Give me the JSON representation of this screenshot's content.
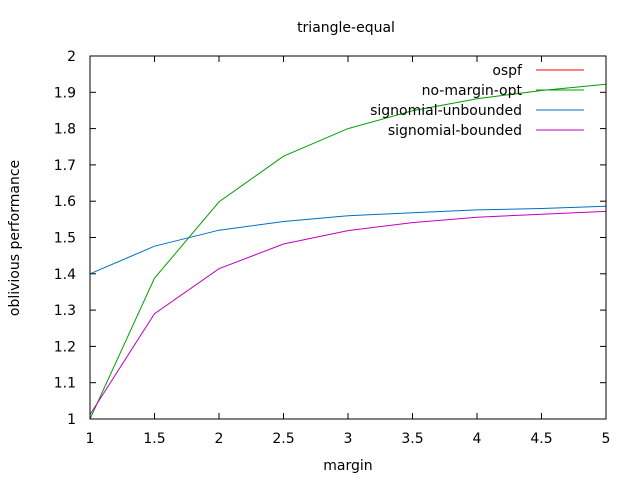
{
  "chart_data": {
    "type": "line",
    "title": "triangle-equal",
    "xlabel": "margin",
    "ylabel": "oblivious performance",
    "xlim": [
      1,
      5
    ],
    "ylim": [
      1,
      2
    ],
    "xticks": [
      1,
      1.5,
      2,
      2.5,
      3,
      3.5,
      4,
      4.5,
      5
    ],
    "yticks": [
      1,
      1.1,
      1.2,
      1.3,
      1.4,
      1.5,
      1.6,
      1.7,
      1.8,
      1.9,
      2
    ],
    "grid": false,
    "legend_position": "top-right",
    "series": [
      {
        "name": "ospf",
        "color": "#ff0000",
        "x": [],
        "y": []
      },
      {
        "name": "no-margin-opt",
        "color": "#00a000",
        "x": [
          1,
          1.5,
          2,
          2.5,
          3,
          3.5,
          4,
          4.5,
          5
        ],
        "y": [
          1.0,
          1.388,
          1.598,
          1.724,
          1.8,
          1.849,
          1.882,
          1.905,
          1.922
        ]
      },
      {
        "name": "signomial-unbounded",
        "color": "#0070c0",
        "x": [
          1,
          1.5,
          2,
          2.5,
          3,
          3.5,
          4,
          4.5,
          5
        ],
        "y": [
          1.4,
          1.476,
          1.52,
          1.544,
          1.56,
          1.568,
          1.576,
          1.58,
          1.586
        ]
      },
      {
        "name": "signomial-bounded",
        "color": "#c000c0",
        "x": [
          1,
          1.5,
          2,
          2.5,
          3,
          3.5,
          4,
          4.5,
          5
        ],
        "y": [
          1.012,
          1.29,
          1.414,
          1.482,
          1.519,
          1.541,
          1.556,
          1.564,
          1.572
        ]
      }
    ]
  }
}
